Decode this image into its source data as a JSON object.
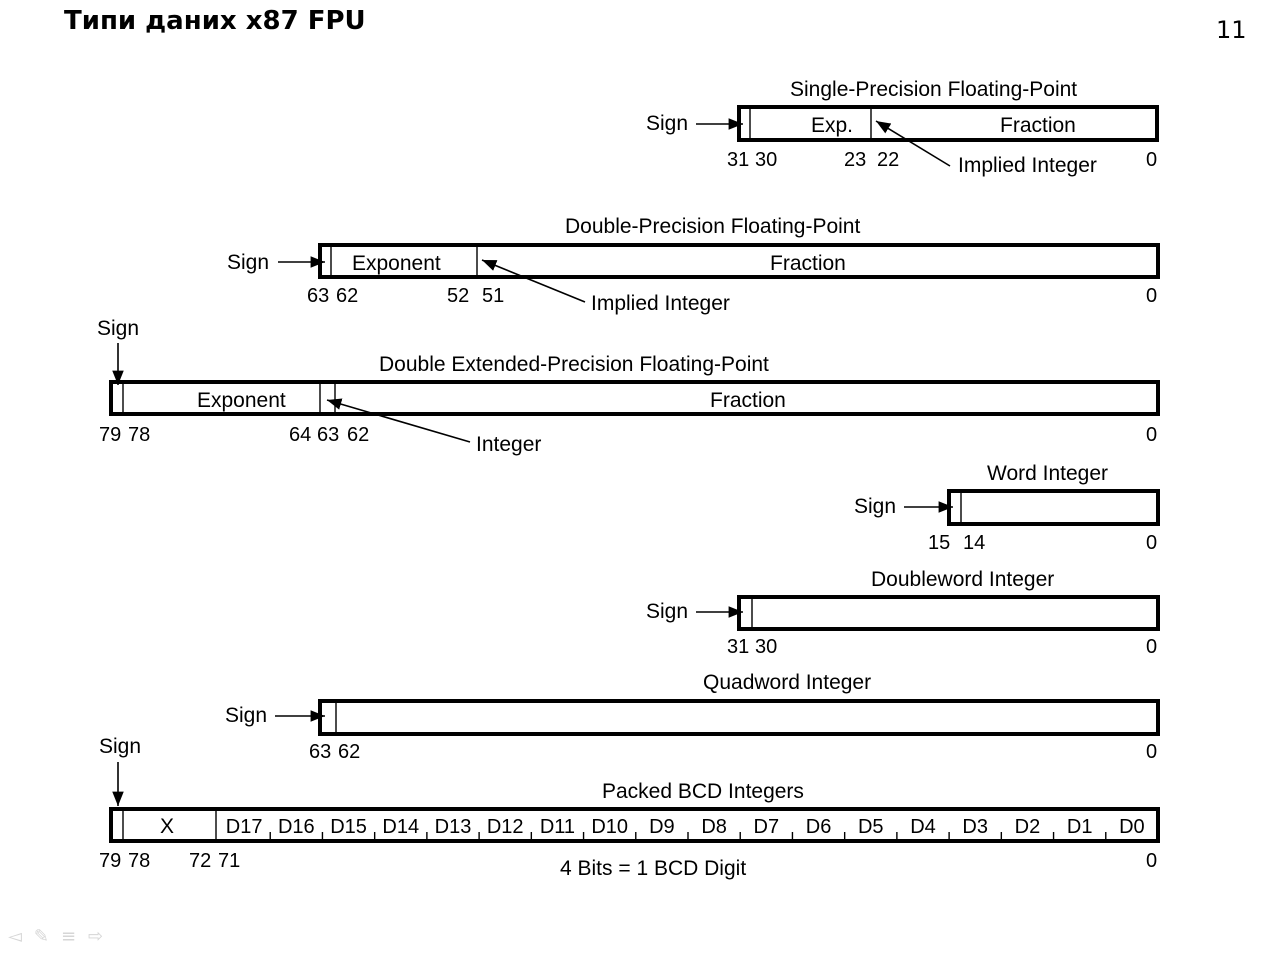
{
  "slide": {
    "title": "Типи даних x87 FPU",
    "number": "11"
  },
  "nav": {
    "prev_icon": "◅",
    "pen_icon": "✎",
    "menu_icon": "≡",
    "next_icon": "⇨"
  },
  "formats": {
    "single": {
      "title": "Single-Precision Floating-Point",
      "sign": "Sign",
      "exp_label": "Exp.",
      "fraction_label": "Fraction",
      "implied": "Implied Integer",
      "bits": [
        "31",
        "30",
        "23",
        "22",
        "0"
      ]
    },
    "double": {
      "title": "Double-Precision Floating-Point",
      "sign": "Sign",
      "exp_label": "Exponent",
      "fraction_label": "Fraction",
      "implied": "Implied Integer",
      "bits": [
        "63",
        "62",
        "52",
        "51",
        "0"
      ]
    },
    "extended": {
      "title": "Double Extended-Precision Floating-Point",
      "sign": "Sign",
      "exp_label": "Exponent",
      "fraction_label": "Fraction",
      "integer": "Integer",
      "bits": [
        "79",
        "78",
        "64",
        "63",
        "62",
        "0"
      ]
    },
    "word": {
      "title": "Word Integer",
      "sign": "Sign",
      "bits": [
        "15",
        "14",
        "0"
      ]
    },
    "dword": {
      "title": "Doubleword Integer",
      "sign": "Sign",
      "bits": [
        "31",
        "30",
        "0"
      ]
    },
    "qword": {
      "title": "Quadword Integer",
      "sign": "Sign",
      "bits": [
        "63",
        "62",
        "0"
      ]
    },
    "bcd": {
      "title": "Packed BCD Integers",
      "sign": "Sign",
      "x_label": "X",
      "digits": [
        "D17",
        "D16",
        "D15",
        "D14",
        "D13",
        "D12",
        "D11",
        "D10",
        "D9",
        "D8",
        "D7",
        "D6",
        "D5",
        "D4",
        "D3",
        "D2",
        "D1",
        "D0"
      ],
      "bits": [
        "79",
        "78",
        "72",
        "71",
        "0"
      ],
      "caption": "4 Bits = 1 BCD Digit"
    }
  }
}
